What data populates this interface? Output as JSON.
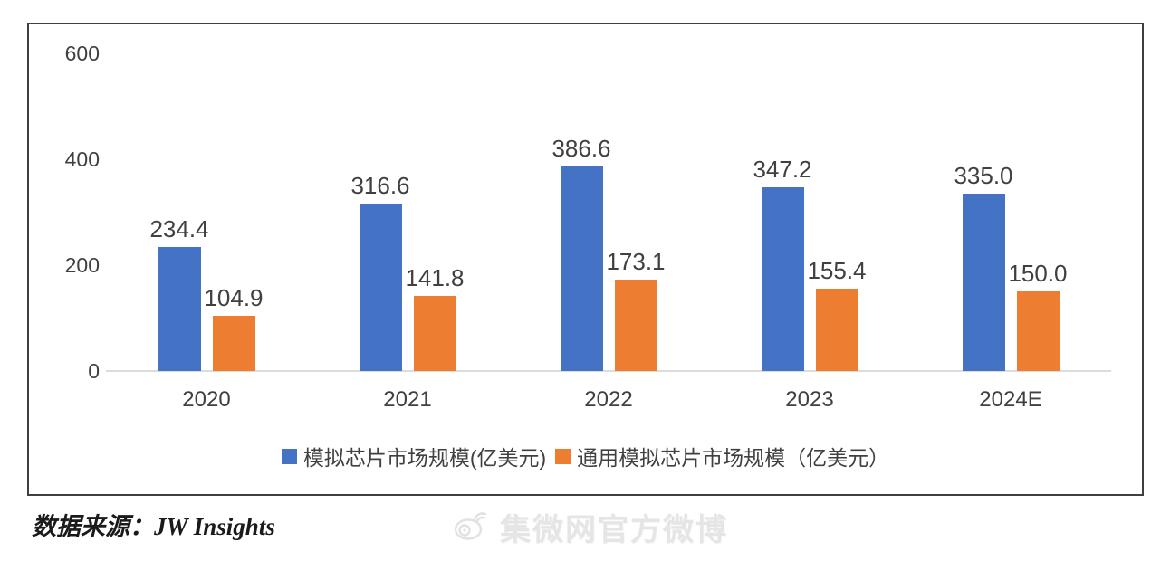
{
  "chart_data": {
    "type": "bar",
    "categories": [
      "2020",
      "2021",
      "2022",
      "2023",
      "2024E"
    ],
    "series": [
      {
        "name": "模拟芯片市场规模(亿美元)",
        "color": "#4472C4",
        "values": [
          234.4,
          316.6,
          386.6,
          347.2,
          335.0
        ]
      },
      {
        "name": "通用模拟芯片市场规模（亿美元）",
        "color": "#ED7D31",
        "values": [
          104.9,
          141.8,
          173.1,
          155.4,
          150.0
        ]
      }
    ],
    "value_label_decimals": 1,
    "yticks": [
      0,
      200,
      400,
      600
    ],
    "ylim": [
      0,
      600
    ],
    "grid": false,
    "legend_position": "bottom",
    "title": "",
    "xlabel": "",
    "ylabel": ""
  },
  "footer": {
    "source_label": "数据来源：JW Insights"
  },
  "watermark": {
    "icon": "weibo-icon",
    "text": "集微网官方微博"
  },
  "colors": {
    "frame_border": "#404040",
    "axis_line": "#DCDCDC",
    "text": "#404040",
    "watermark": "#E5E5E5"
  }
}
